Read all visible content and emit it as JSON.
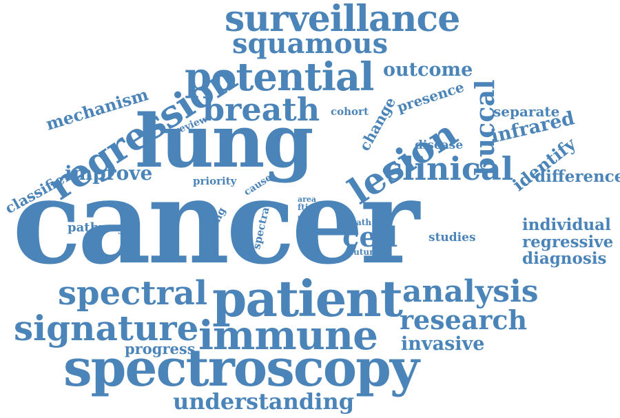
{
  "color": "#4a84b8",
  "words": [
    {
      "id": "cancer",
      "text": "cancer"
    },
    {
      "id": "lung",
      "text": "lung"
    },
    {
      "id": "patient",
      "text": "patient"
    },
    {
      "id": "spectroscopy",
      "text": "spectroscopy"
    },
    {
      "id": "immune",
      "text": "immune"
    },
    {
      "id": "potential",
      "text": "potential"
    },
    {
      "id": "regression",
      "text": "regression"
    },
    {
      "id": "surveillance",
      "text": "surveillance"
    },
    {
      "id": "spectral",
      "text": "spectral"
    },
    {
      "id": "signature",
      "text": "signature"
    },
    {
      "id": "lesion",
      "text": "lesion"
    },
    {
      "id": "breath",
      "text": "breath"
    },
    {
      "id": "clinical",
      "text": "clinical"
    },
    {
      "id": "analysis",
      "text": "analysis"
    },
    {
      "id": "squamous",
      "text": "squamous"
    },
    {
      "id": "research",
      "text": "research"
    },
    {
      "id": "understanding",
      "text": "understanding"
    },
    {
      "id": "buccal",
      "text": "buccal"
    },
    {
      "id": "cell",
      "text": "cell"
    },
    {
      "id": "invasive",
      "text": "invasive"
    },
    {
      "id": "outcome",
      "text": "outcome"
    },
    {
      "id": "mechanism",
      "text": "mechanism"
    },
    {
      "id": "improve",
      "text": "improve"
    },
    {
      "id": "infrared",
      "text": "infrared"
    },
    {
      "id": "identify",
      "text": "identify"
    },
    {
      "id": "difference",
      "text": "difference"
    },
    {
      "id": "individual",
      "text": "individual"
    },
    {
      "id": "regressive",
      "text": "regressive"
    },
    {
      "id": "diagnosis",
      "text": "diagnosis"
    },
    {
      "id": "classifier",
      "text": "classifier"
    },
    {
      "id": "progress",
      "text": "progress"
    },
    {
      "id": "change",
      "text": "change"
    },
    {
      "id": "presence",
      "text": "presence"
    },
    {
      "id": "separate",
      "text": "separate"
    },
    {
      "id": "disease",
      "text": "disease"
    },
    {
      "id": "pathway",
      "text": "pathway"
    },
    {
      "id": "studies",
      "text": "studies"
    },
    {
      "id": "cohort",
      "text": "cohort"
    },
    {
      "id": "review",
      "text": "review"
    },
    {
      "id": "priority",
      "text": "priority"
    },
    {
      "id": "cause",
      "text": "cause"
    },
    {
      "id": "finding",
      "text": "finding"
    },
    {
      "id": "spectra",
      "text": "spectra"
    },
    {
      "id": "death",
      "text": "death"
    },
    {
      "id": "future",
      "text": "future"
    },
    {
      "id": "area",
      "text": "area"
    },
    {
      "id": "ftir",
      "text": "ftir"
    },
    {
      "id": "test",
      "text": "test"
    }
  ]
}
